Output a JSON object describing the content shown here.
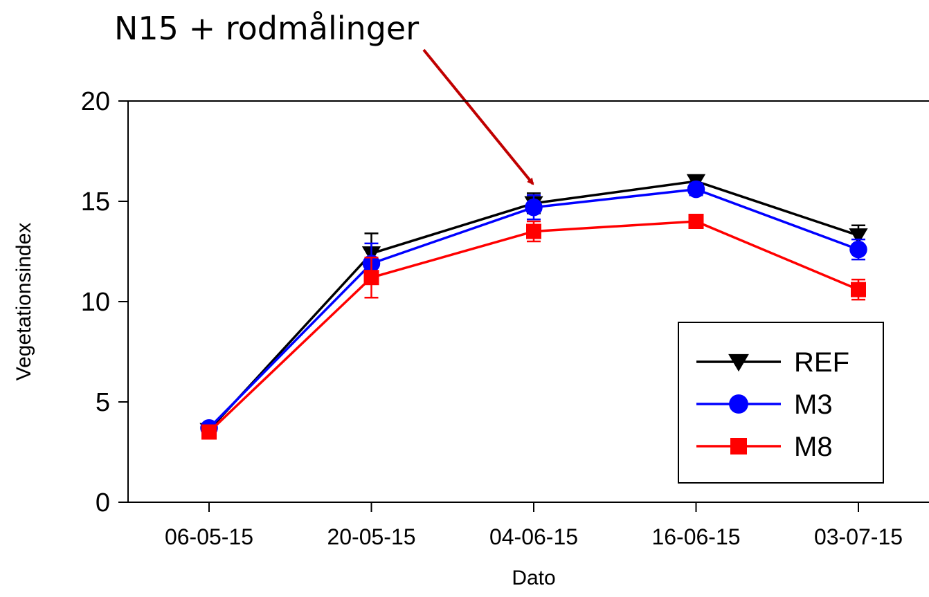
{
  "chart_data": {
    "type": "line",
    "title": "",
    "xlabel": "Dato",
    "ylabel": "Vegetationsindex",
    "categories": [
      "06-05-15",
      "20-05-15",
      "04-06-15",
      "16-06-15",
      "03-07-15"
    ],
    "ylim": [
      0,
      20
    ],
    "yticks": [
      0,
      5,
      10,
      15,
      20
    ],
    "grid": false,
    "legend_position": "bottom-right",
    "annotation": {
      "text": "N15 + rodmålinger",
      "target_category": "04-06-15"
    },
    "series": [
      {
        "name": "REF",
        "color": "#000000",
        "marker": "triangle-down",
        "values": [
          3.6,
          12.4,
          14.9,
          16.0,
          13.3
        ],
        "errors": [
          0.2,
          1.0,
          0.5,
          0.2,
          0.5
        ]
      },
      {
        "name": "M3",
        "color": "#0000ff",
        "marker": "circle",
        "values": [
          3.7,
          11.9,
          14.7,
          15.6,
          12.6
        ],
        "errors": [
          0.2,
          1.0,
          0.6,
          0.3,
          0.5
        ]
      },
      {
        "name": "M8",
        "color": "#ff0000",
        "marker": "square",
        "values": [
          3.5,
          11.2,
          13.5,
          14.0,
          10.6
        ],
        "errors": [
          0.2,
          1.0,
          0.5,
          0.3,
          0.5
        ]
      }
    ]
  }
}
